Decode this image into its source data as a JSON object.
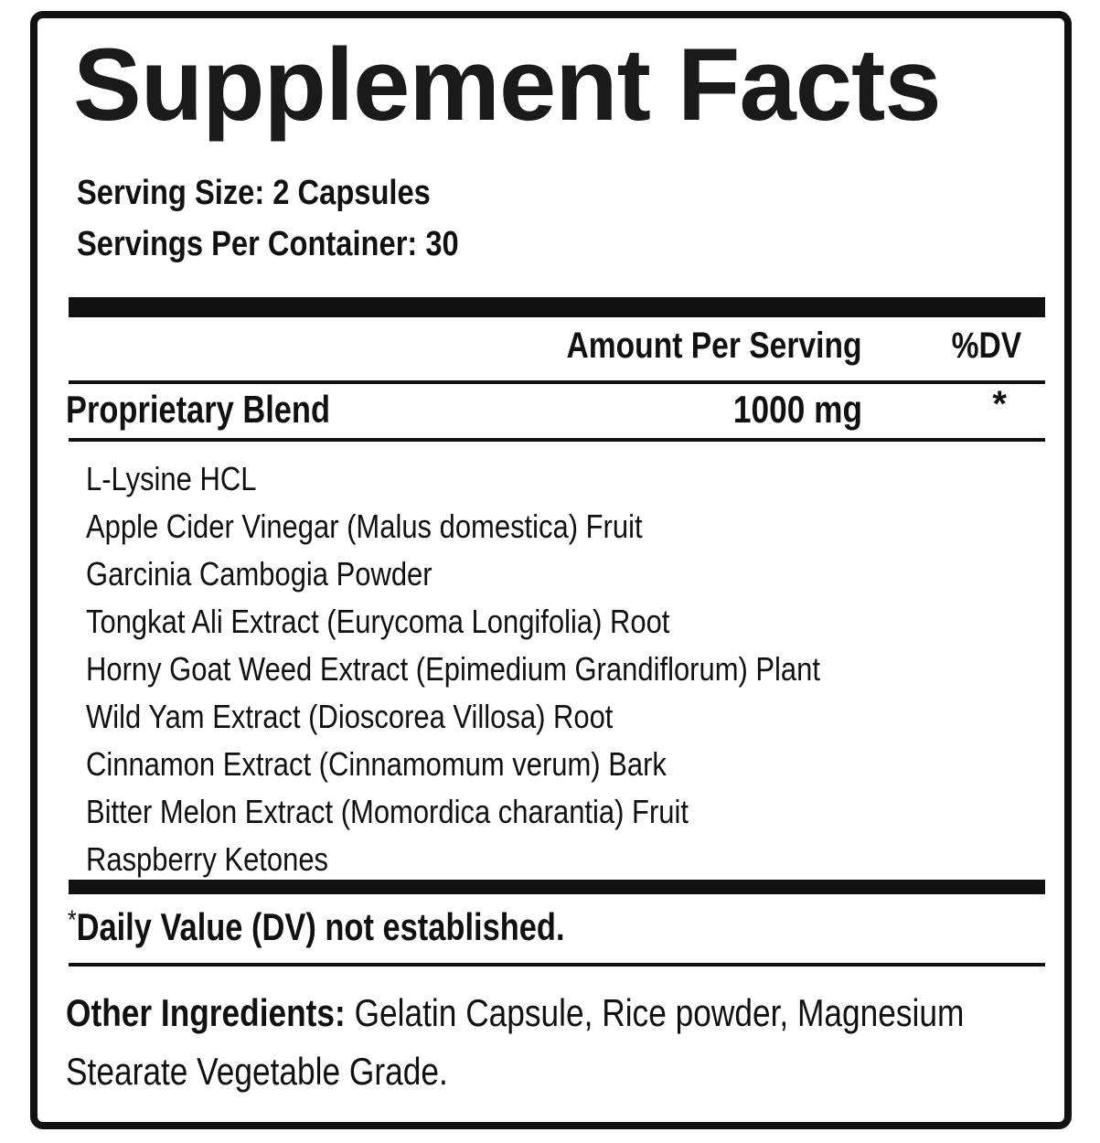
{
  "title": "Supplement Facts",
  "serving_size": "Serving Size: 2 Capsules",
  "servings_per_container": "Servings Per Container: 30",
  "header": {
    "amount": "Amount Per Serving",
    "dv": "%DV"
  },
  "blend": {
    "name": "Proprietary Blend",
    "amount": "1000 mg",
    "dv": "*"
  },
  "ingredients": [
    "L-Lysine HCL",
    "Apple Cider Vinegar (Malus domestica) Fruit",
    "Garcinia Cambogia Powder",
    "Tongkat Ali Extract (Eurycoma Longifolia) Root",
    "Horny Goat Weed Extract (Epimedium Grandiflorum) Plant",
    "Wild Yam Extract (Dioscorea Villosa) Root",
    "Cinnamon Extract (Cinnamomum verum) Bark",
    "Bitter Melon Extract (Momordica charantia) Fruit",
    "Raspberry Ketones"
  ],
  "footnote": {
    "mark": "*",
    "text": "Daily Value (DV) not established."
  },
  "other_ingredients": {
    "label": "Other Ingredients:",
    "text": "Gelatin Capsule, Rice powder, Magnesium Stearate Vegetable Grade."
  }
}
